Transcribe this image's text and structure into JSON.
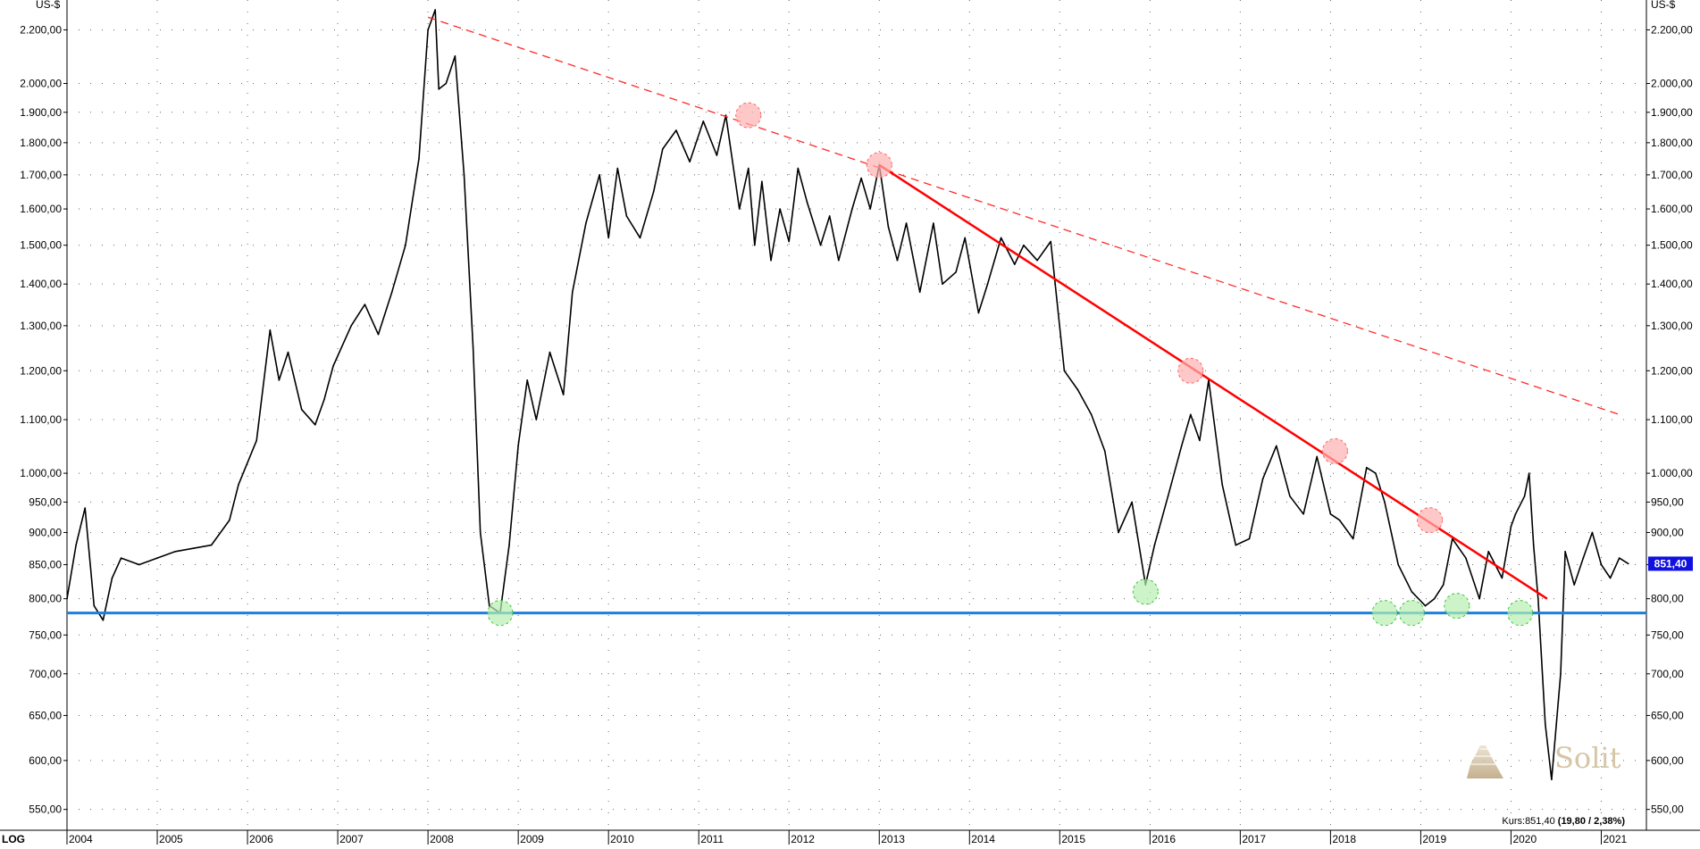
{
  "chart_data": {
    "type": "line",
    "scale": "log",
    "currency_label": "US-$",
    "log_label": "LOG",
    "ylim": [
      530,
      2320
    ],
    "xlim": [
      2004.0,
      2021.5
    ],
    "y_ticks": [
      550,
      600,
      650,
      700,
      750,
      800,
      850,
      900,
      950,
      1000,
      1100,
      1200,
      1300,
      1400,
      1500,
      1600,
      1700,
      1800,
      1900,
      2000,
      2200
    ],
    "y_tick_labels": [
      "550,00",
      "600,00",
      "650,00",
      "700,00",
      "750,00",
      "800,00",
      "850,00",
      "900,00",
      "950,00",
      "1.000,00",
      "1.100,00",
      "1.200,00",
      "1.300,00",
      "1.400,00",
      "1.500,00",
      "1.600,00",
      "1.700,00",
      "1.800,00",
      "1.900,00",
      "2.000,00",
      "2.200,00"
    ],
    "x_ticks": [
      2004,
      2005,
      2006,
      2007,
      2008,
      2009,
      2010,
      2011,
      2012,
      2013,
      2014,
      2015,
      2016,
      2017,
      2018,
      2019,
      2020,
      2021
    ],
    "x_tick_labels": [
      "2004",
      "2005",
      "2006",
      "2007",
      "2008",
      "2009",
      "2010",
      "2011",
      "2012",
      "2013",
      "2014",
      "2015",
      "2016",
      "2017",
      "2018",
      "2019",
      "2020",
      "2021"
    ],
    "grid": true,
    "series": [
      {
        "color": "#000000",
        "x": [
          2004.0,
          2004.1,
          2004.2,
          2004.3,
          2004.4,
          2004.5,
          2004.6,
          2004.8,
          2005.0,
          2005.2,
          2005.4,
          2005.6,
          2005.8,
          2005.9,
          2006.1,
          2006.25,
          2006.35,
          2006.45,
          2006.6,
          2006.75,
          2006.85,
          2006.95,
          2007.15,
          2007.3,
          2007.45,
          2007.6,
          2007.75,
          2007.9,
          2008.0,
          2008.08,
          2008.12,
          2008.2,
          2008.3,
          2008.4,
          2008.5,
          2008.58,
          2008.68,
          2008.8,
          2008.9,
          2009.0,
          2009.1,
          2009.2,
          2009.35,
          2009.5,
          2009.6,
          2009.75,
          2009.9,
          2010.0,
          2010.1,
          2010.2,
          2010.35,
          2010.5,
          2010.6,
          2010.75,
          2010.9,
          2011.05,
          2011.2,
          2011.3,
          2011.45,
          2011.55,
          2011.62,
          2011.7,
          2011.8,
          2011.9,
          2012.0,
          2012.1,
          2012.2,
          2012.35,
          2012.45,
          2012.55,
          2012.7,
          2012.8,
          2012.9,
          2013.0,
          2013.1,
          2013.2,
          2013.3,
          2013.45,
          2013.6,
          2013.7,
          2013.85,
          2013.95,
          2014.1,
          2014.2,
          2014.35,
          2014.5,
          2014.6,
          2014.75,
          2014.9,
          2015.05,
          2015.2,
          2015.35,
          2015.5,
          2015.65,
          2015.8,
          2015.95,
          2016.05,
          2016.2,
          2016.35,
          2016.45,
          2016.55,
          2016.65,
          2016.8,
          2016.95,
          2017.1,
          2017.25,
          2017.4,
          2017.55,
          2017.7,
          2017.85,
          2018.0,
          2018.1,
          2018.25,
          2018.4,
          2018.5,
          2018.6,
          2018.75,
          2018.9,
          2019.05,
          2019.15,
          2019.25,
          2019.35,
          2019.5,
          2019.65,
          2019.75,
          2019.9,
          2020.0,
          2020.05,
          2020.15,
          2020.2,
          2020.25,
          2020.3,
          2020.38,
          2020.45,
          2020.55,
          2020.6,
          2020.7,
          2020.8,
          2020.9,
          2021.0,
          2021.1,
          2021.2,
          2021.3
        ],
        "y": [
          800,
          880,
          940,
          790,
          770,
          830,
          860,
          850,
          860,
          870,
          875,
          880,
          920,
          980,
          1060,
          1290,
          1180,
          1240,
          1120,
          1090,
          1140,
          1210,
          1300,
          1350,
          1280,
          1380,
          1500,
          1750,
          2200,
          2280,
          1980,
          2000,
          2100,
          1700,
          1250,
          900,
          790,
          780,
          880,
          1050,
          1180,
          1100,
          1240,
          1150,
          1380,
          1560,
          1700,
          1520,
          1720,
          1580,
          1520,
          1650,
          1780,
          1840,
          1740,
          1870,
          1760,
          1890,
          1600,
          1720,
          1500,
          1680,
          1460,
          1600,
          1510,
          1720,
          1620,
          1500,
          1580,
          1460,
          1600,
          1690,
          1600,
          1730,
          1550,
          1460,
          1560,
          1380,
          1560,
          1400,
          1430,
          1520,
          1330,
          1400,
          1520,
          1450,
          1500,
          1460,
          1510,
          1200,
          1160,
          1110,
          1040,
          900,
          950,
          820,
          880,
          960,
          1050,
          1110,
          1060,
          1180,
          980,
          880,
          890,
          990,
          1050,
          960,
          930,
          1030,
          930,
          920,
          890,
          1010,
          1000,
          950,
          850,
          810,
          790,
          800,
          820,
          890,
          860,
          800,
          870,
          830,
          910,
          930,
          960,
          1000,
          880,
          800,
          640,
          580,
          700,
          870,
          820,
          860,
          900,
          850,
          830,
          860,
          851.4
        ]
      }
    ],
    "horizontal_support": 780,
    "trendlines": [
      {
        "style": "dashed",
        "color": "#ff2a2a",
        "x": [
          2008.0,
          2021.2
        ],
        "y": [
          2250,
          1110
        ]
      },
      {
        "style": "solid",
        "color": "#ff0000",
        "x": [
          2013.0,
          2020.4
        ],
        "y": [
          1730,
          800
        ]
      }
    ],
    "resistance_markers": [
      {
        "x": 2011.55,
        "y": 1890
      },
      {
        "x": 2013.0,
        "y": 1730
      },
      {
        "x": 2016.45,
        "y": 1200
      },
      {
        "x": 2018.05,
        "y": 1040
      },
      {
        "x": 2019.1,
        "y": 920
      }
    ],
    "support_markers": [
      {
        "x": 2008.8,
        "y": 780
      },
      {
        "x": 2015.95,
        "y": 810
      },
      {
        "x": 2018.6,
        "y": 780
      },
      {
        "x": 2018.9,
        "y": 780
      },
      {
        "x": 2019.4,
        "y": 790
      },
      {
        "x": 2020.1,
        "y": 780
      }
    ],
    "last_value": 851.4,
    "last_value_label": "851,40",
    "kurs_prefix": "Kurs:851,40",
    "kurs_change": "(19,80 / 2,38%)",
    "watermark": "Solit",
    "colors": {
      "price": "#000000",
      "support_line": "#1a7fe0",
      "trend": "#ff0000",
      "resistance_marker": "#ffb0b0",
      "support_marker": "#b8f0b0",
      "value_badge": "#1010e0"
    }
  }
}
